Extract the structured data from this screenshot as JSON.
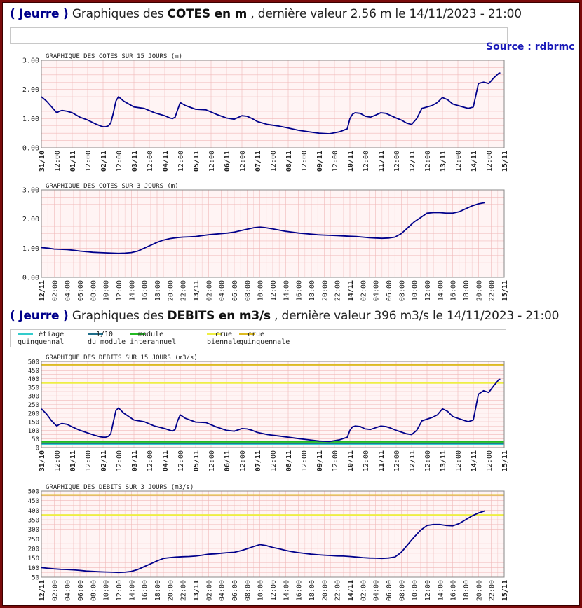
{
  "cotes_header": {
    "station": "( Jeurre )",
    "prefix": "Graphiques des",
    "bold": "COTES en m",
    "suffix": " , dernière valeur 2.56 m le 14/11/2023 - 21:00"
  },
  "debits_header": {
    "station": "( Jeurre )",
    "prefix": "Graphiques des",
    "bold": "DEBITS en m3/s",
    "suffix": " , dernière valeur 396 m3/s le 14/11/2023 - 21:00"
  },
  "source": "Source : rdbrmc",
  "legend": [
    {
      "line1": "étiage",
      "line2": "quinquennal",
      "color": "#33cccc"
    },
    {
      "line1": "1/10",
      "line2": "du module",
      "color": "#1f6f8b"
    },
    {
      "line1": "module",
      "line2": "interannuel",
      "color": "#22bb22"
    },
    {
      "line1": "crue",
      "line2": "biennale",
      "color": "#eeee44"
    },
    {
      "line1": "crue",
      "line2": "quinquennale",
      "color": "#ddbb22"
    }
  ],
  "colors": {
    "curve": "#00008b",
    "grid": "#f0b8b8",
    "plot_bg": "#fff4f4"
  },
  "chart_data": [
    {
      "type": "line",
      "title": "GRAPHIQUE DES COTES SUR 15 JOURS (m)",
      "ylim": [
        0,
        3
      ],
      "yticks": [
        "0.00",
        "1.00",
        "2.00",
        "3.00"
      ],
      "xticks": [
        "31/10",
        "12:00",
        "01/11",
        "12:00",
        "02/11",
        "12:00",
        "03/11",
        "12:00",
        "04/11",
        "12:00",
        "05/11",
        "12:00",
        "06/11",
        "12:00",
        "07/11",
        "12:00",
        "08/11",
        "12:00",
        "09/11",
        "12:00",
        "10/11",
        "12:00",
        "11/11",
        "12:00",
        "12/11",
        "12:00",
        "13/11",
        "12:00",
        "14/11",
        "12:00",
        "15/11"
      ],
      "x_range_hours": [
        0,
        360
      ],
      "series": [
        {
          "x": [
            0,
            4,
            8,
            10,
            12,
            14,
            16,
            20,
            24,
            30,
            36,
            42,
            46,
            48,
            50,
            52,
            54,
            56,
            58,
            60,
            64,
            72,
            80,
            88,
            96,
            100,
            102,
            104,
            106,
            108,
            112,
            120,
            128,
            136,
            144,
            150,
            156,
            160,
            164,
            168,
            176,
            184,
            192,
            200,
            208,
            216,
            224,
            232,
            238,
            240,
            242,
            244,
            248,
            252,
            256,
            260,
            264,
            268,
            272,
            276,
            280,
            284,
            288,
            292,
            296,
            300,
            304,
            308,
            312,
            316,
            320,
            324,
            328,
            332,
            336,
            340,
            344,
            348,
            352,
            356,
            357
          ],
          "y": [
            1.75,
            1.6,
            1.4,
            1.3,
            1.2,
            1.25,
            1.28,
            1.25,
            1.2,
            1.05,
            0.95,
            0.82,
            0.75,
            0.72,
            0.72,
            0.75,
            0.85,
            1.2,
            1.6,
            1.75,
            1.6,
            1.4,
            1.35,
            1.2,
            1.1,
            1.02,
            1.0,
            1.05,
            1.3,
            1.55,
            1.45,
            1.32,
            1.3,
            1.15,
            1.02,
            0.98,
            1.1,
            1.08,
            1.0,
            0.9,
            0.8,
            0.75,
            0.68,
            0.6,
            0.55,
            0.5,
            0.48,
            0.55,
            0.65,
            1.0,
            1.15,
            1.2,
            1.18,
            1.08,
            1.05,
            1.12,
            1.2,
            1.18,
            1.1,
            1.02,
            0.95,
            0.85,
            0.8,
            1.0,
            1.35,
            1.4,
            1.45,
            1.55,
            1.72,
            1.65,
            1.5,
            1.45,
            1.4,
            1.35,
            1.4,
            2.2,
            2.25,
            2.2,
            2.4,
            2.56,
            2.56
          ]
        }
      ]
    },
    {
      "type": "line",
      "title": "GRAPHIQUE DES COTES SUR 3 JOURS (m)",
      "ylim": [
        0,
        3
      ],
      "yticks": [
        "0.00",
        "1.00",
        "2.00",
        "3.00"
      ],
      "xticks": [
        "12/11",
        "02:00",
        "04:00",
        "06:00",
        "08:00",
        "10:00",
        "12:00",
        "14:00",
        "16:00",
        "18:00",
        "20:00",
        "22:00",
        "13/11",
        "02:00",
        "04:00",
        "06:00",
        "08:00",
        "10:00",
        "12:00",
        "14:00",
        "16:00",
        "18:00",
        "20:00",
        "22:00",
        "14/11",
        "02:00",
        "04:00",
        "06:00",
        "08:00",
        "10:00",
        "12:00",
        "14:00",
        "16:00",
        "18:00",
        "20:00",
        "22:00",
        "15/11"
      ],
      "x_range_hours": [
        0,
        72
      ],
      "series": [
        {
          "x": [
            0,
            1,
            2,
            3,
            4,
            5,
            6,
            7,
            8,
            9,
            10,
            11,
            12,
            13,
            14,
            15,
            16,
            17,
            18,
            19,
            20,
            21,
            22,
            23,
            24,
            25,
            26,
            27,
            28,
            29,
            30,
            31,
            32,
            33,
            34,
            35,
            36,
            37,
            38,
            39,
            40,
            41,
            42,
            43,
            44,
            45,
            46,
            47,
            48,
            49,
            50,
            51,
            52,
            53,
            54,
            55,
            56,
            57,
            58,
            59,
            60,
            61,
            62,
            63,
            64,
            65,
            66,
            67,
            68,
            69
          ],
          "y": [
            1.02,
            1.0,
            0.97,
            0.96,
            0.95,
            0.93,
            0.9,
            0.88,
            0.86,
            0.85,
            0.84,
            0.83,
            0.82,
            0.83,
            0.85,
            0.9,
            1.0,
            1.1,
            1.2,
            1.28,
            1.33,
            1.36,
            1.38,
            1.39,
            1.4,
            1.43,
            1.46,
            1.48,
            1.5,
            1.52,
            1.55,
            1.6,
            1.65,
            1.7,
            1.72,
            1.7,
            1.66,
            1.62,
            1.58,
            1.55,
            1.52,
            1.5,
            1.48,
            1.46,
            1.45,
            1.44,
            1.43,
            1.42,
            1.41,
            1.4,
            1.38,
            1.36,
            1.35,
            1.34,
            1.35,
            1.38,
            1.5,
            1.7,
            1.9,
            2.05,
            2.2,
            2.22,
            2.22,
            2.2,
            2.2,
            2.25,
            2.35,
            2.45,
            2.52,
            2.56
          ]
        }
      ]
    },
    {
      "type": "line",
      "title": "GRAPHIQUE DES DEBITS SUR 15 JOURS (m3/s)",
      "ylim": [
        0,
        500
      ],
      "yticks": [
        "0",
        "50",
        "100",
        "150",
        "200",
        "250",
        "300",
        "350",
        "400",
        "450",
        "500"
      ],
      "xticks": [
        "31/10",
        "12:00",
        "01/11",
        "12:00",
        "02/11",
        "12:00",
        "03/11",
        "12:00",
        "04/11",
        "12:00",
        "05/11",
        "12:00",
        "06/11",
        "12:00",
        "07/11",
        "12:00",
        "08/11",
        "12:00",
        "09/11",
        "12:00",
        "10/11",
        "12:00",
        "11/11",
        "12:00",
        "12/11",
        "12:00",
        "13/11",
        "12:00",
        "14/11",
        "12:00",
        "15/11"
      ],
      "x_range_hours": [
        0,
        360
      ],
      "reference_lines": [
        {
          "name": "étiage quinquennal",
          "value": 20,
          "color": "#33cccc"
        },
        {
          "name": "1/10 du module",
          "value": 25,
          "color": "#1f6f8b"
        },
        {
          "name": "module interannuel",
          "value": 33,
          "color": "#22bb22"
        },
        {
          "name": "crue biennale",
          "value": 375,
          "color": "#eeee44"
        },
        {
          "name": "crue quinquennale",
          "value": 480,
          "color": "#ddbb22"
        }
      ],
      "series": [
        {
          "x": [
            0,
            4,
            8,
            10,
            12,
            14,
            16,
            20,
            24,
            30,
            36,
            42,
            46,
            48,
            50,
            52,
            54,
            56,
            58,
            60,
            64,
            72,
            80,
            88,
            96,
            100,
            102,
            104,
            106,
            108,
            112,
            120,
            128,
            136,
            144,
            150,
            156,
            160,
            164,
            168,
            176,
            184,
            192,
            200,
            208,
            216,
            224,
            232,
            238,
            240,
            242,
            244,
            248,
            252,
            256,
            260,
            264,
            268,
            272,
            276,
            280,
            284,
            288,
            292,
            296,
            300,
            304,
            308,
            312,
            316,
            320,
            324,
            328,
            332,
            336,
            340,
            344,
            348,
            352,
            356,
            357
          ],
          "y": [
            225,
            195,
            155,
            140,
            125,
            135,
            140,
            135,
            120,
            100,
            85,
            70,
            62,
            60,
            60,
            65,
            80,
            150,
            215,
            230,
            200,
            160,
            150,
            125,
            110,
            100,
            96,
            105,
            155,
            190,
            170,
            148,
            145,
            120,
            100,
            95,
            110,
            108,
            100,
            88,
            75,
            68,
            60,
            52,
            45,
            38,
            35,
            45,
            60,
            100,
            120,
            125,
            122,
            108,
            105,
            115,
            125,
            122,
            112,
            100,
            90,
            80,
            75,
            100,
            155,
            165,
            175,
            190,
            225,
            210,
            180,
            170,
            160,
            150,
            160,
            310,
            330,
            320,
            360,
            396,
            396
          ]
        }
      ]
    },
    {
      "type": "line",
      "title": "GRAPHIQUE DES DEBITS SUR 3 JOURS (m3/s)",
      "ylim": [
        50,
        500
      ],
      "yticks": [
        "50",
        "100",
        "150",
        "200",
        "250",
        "300",
        "350",
        "400",
        "450",
        "500"
      ],
      "xticks": [
        "12/11",
        "02:00",
        "04:00",
        "06:00",
        "08:00",
        "10:00",
        "12:00",
        "14:00",
        "16:00",
        "18:00",
        "20:00",
        "22:00",
        "13/11",
        "02:00",
        "04:00",
        "06:00",
        "08:00",
        "10:00",
        "12:00",
        "14:00",
        "16:00",
        "18:00",
        "20:00",
        "22:00",
        "14/11",
        "02:00",
        "04:00",
        "06:00",
        "08:00",
        "10:00",
        "12:00",
        "14:00",
        "16:00",
        "18:00",
        "20:00",
        "22:00",
        "15/11"
      ],
      "x_range_hours": [
        0,
        72
      ],
      "reference_lines": [
        {
          "name": "crue biennale",
          "value": 375,
          "color": "#eeee44"
        },
        {
          "name": "crue quinquennale",
          "value": 480,
          "color": "#ddbb22"
        }
      ],
      "series": [
        {
          "x": [
            0,
            1,
            2,
            3,
            4,
            5,
            6,
            7,
            8,
            9,
            10,
            11,
            12,
            13,
            14,
            15,
            16,
            17,
            18,
            19,
            20,
            21,
            22,
            23,
            24,
            25,
            26,
            27,
            28,
            29,
            30,
            31,
            32,
            33,
            34,
            35,
            36,
            37,
            38,
            39,
            40,
            41,
            42,
            43,
            44,
            45,
            46,
            47,
            48,
            49,
            50,
            51,
            52,
            53,
            54,
            55,
            56,
            57,
            58,
            59,
            60,
            61,
            62,
            63,
            64,
            65,
            66,
            67,
            68,
            69
          ],
          "y": [
            100,
            96,
            93,
            91,
            90,
            88,
            85,
            82,
            80,
            78,
            77,
            76,
            75,
            76,
            80,
            90,
            105,
            120,
            135,
            148,
            152,
            155,
            157,
            158,
            160,
            165,
            170,
            172,
            175,
            178,
            180,
            188,
            198,
            210,
            220,
            215,
            205,
            198,
            190,
            183,
            178,
            174,
            170,
            167,
            165,
            163,
            161,
            160,
            158,
            155,
            152,
            150,
            149,
            148,
            150,
            155,
            180,
            220,
            260,
            295,
            320,
            325,
            325,
            320,
            318,
            330,
            350,
            370,
            385,
            396
          ]
        }
      ]
    }
  ]
}
